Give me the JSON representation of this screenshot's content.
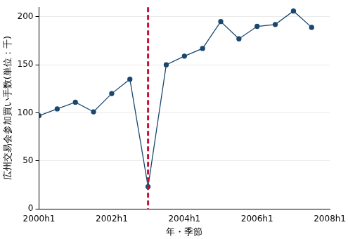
{
  "chart_data": {
    "type": "line",
    "x_label": "年・季節",
    "y_label": "広州交易会参加買い手数(単位：千)",
    "x": [
      2000,
      2000.5,
      2001,
      2001.5,
      2002,
      2002.5,
      2003,
      2003.5,
      2004,
      2004.5,
      2005,
      2005.5,
      2006,
      2006.5,
      2007,
      2007.5
    ],
    "values": [
      97,
      104,
      111,
      101,
      120,
      135,
      23,
      150,
      159,
      167,
      195,
      177,
      190,
      192,
      206,
      189
    ],
    "color": "#1a476f",
    "marker": "circle",
    "line_style": "solid",
    "xlim": [
      2000,
      2008
    ],
    "xticks": [
      {
        "value": 2000,
        "label": "2000h1"
      },
      {
        "value": 2002,
        "label": "2002h1"
      },
      {
        "value": 2004,
        "label": "2004h1"
      },
      {
        "value": 2006,
        "label": "2006h1"
      },
      {
        "value": 2008,
        "label": "2008h1"
      }
    ],
    "ylim": [
      0,
      210
    ],
    "yticks": [
      0,
      50,
      100,
      150,
      200
    ],
    "grid": true,
    "vlines": [
      {
        "x": 2003,
        "color": "#c0143c",
        "line_style": "dashed"
      }
    ]
  }
}
